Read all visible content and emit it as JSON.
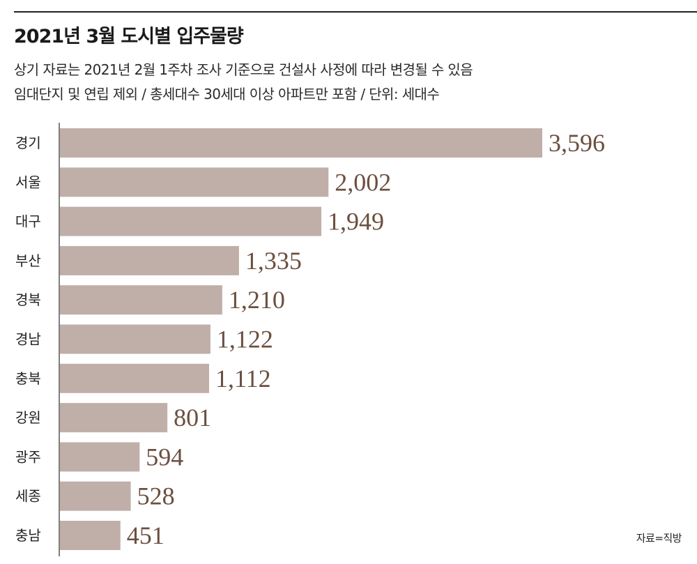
{
  "header": {
    "title": "2021년 3월 도시별 입주물량",
    "subtitle_line1": "상기 자료는 2021년 2월 1주차 조사 기준으로 건설사 사정에 따라 변경될 수 있음",
    "subtitle_line2": "임대단지 및 연립 제외 / 총세대수 30세대 이상 아파트만 포함 / 단위: 세대수"
  },
  "footer": {
    "source": "자료=직방"
  },
  "colors": {
    "bar": "#c0afa8",
    "value_text": "#6b4f3f",
    "label_text": "#222222",
    "axis": "#555555"
  },
  "chart_data": {
    "type": "bar",
    "orientation": "horizontal",
    "categories": [
      "경기",
      "서울",
      "대구",
      "부산",
      "경북",
      "경남",
      "충북",
      "강원",
      "광주",
      "세종",
      "충남"
    ],
    "values": [
      3596,
      2002,
      1949,
      1335,
      1210,
      1122,
      1112,
      801,
      594,
      528,
      451
    ],
    "value_labels": [
      "3,596",
      "2,002",
      "1,949",
      "1,335",
      "1,210",
      "1,122",
      "1,112",
      "801",
      "594",
      "528",
      "451"
    ],
    "title": "",
    "xlabel": "",
    "ylabel": "",
    "xlim": [
      0,
      3596
    ],
    "grid": false,
    "legend": "none"
  }
}
